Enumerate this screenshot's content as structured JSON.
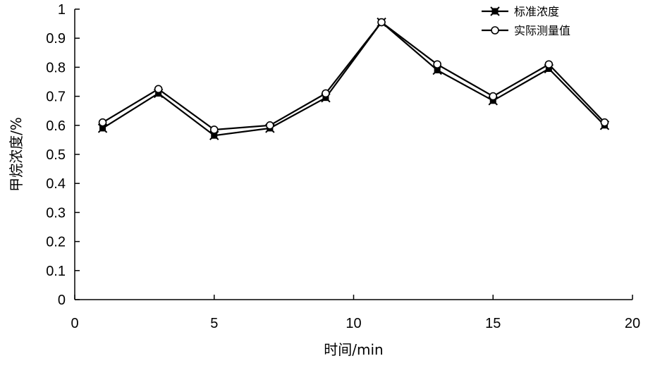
{
  "chart_data": {
    "type": "line",
    "title": "",
    "xlabel": "时间/min",
    "ylabel": "甲烷浓度/%",
    "xlim": [
      0,
      20
    ],
    "ylim": [
      0,
      1
    ],
    "xticks": [
      0,
      5,
      10,
      15,
      20
    ],
    "yticks": [
      0,
      0.1,
      0.2,
      0.3,
      0.4,
      0.5,
      0.6,
      0.7,
      0.8,
      0.9,
      1
    ],
    "ytick_labels": [
      "0",
      "0.1",
      "0.2",
      "0.3",
      "0.4",
      "0.5",
      "0.6",
      "0.7",
      "0.8",
      "0.9",
      "1"
    ],
    "grid": false,
    "legend_position": "top-right",
    "series": [
      {
        "name": "标准浓度",
        "marker": "x-square",
        "color": "#000000",
        "x": [
          1,
          3,
          5,
          7,
          9,
          11,
          13,
          15,
          17,
          19
        ],
        "y": [
          0.59,
          0.71,
          0.565,
          0.59,
          0.695,
          0.955,
          0.79,
          0.685,
          0.795,
          0.6
        ]
      },
      {
        "name": "实际测量值",
        "marker": "circle-open",
        "color": "#000000",
        "x": [
          1,
          3,
          5,
          7,
          9,
          11,
          13,
          15,
          17,
          19
        ],
        "y": [
          0.61,
          0.725,
          0.585,
          0.6,
          0.71,
          0.955,
          0.81,
          0.7,
          0.81,
          0.61
        ]
      }
    ]
  }
}
